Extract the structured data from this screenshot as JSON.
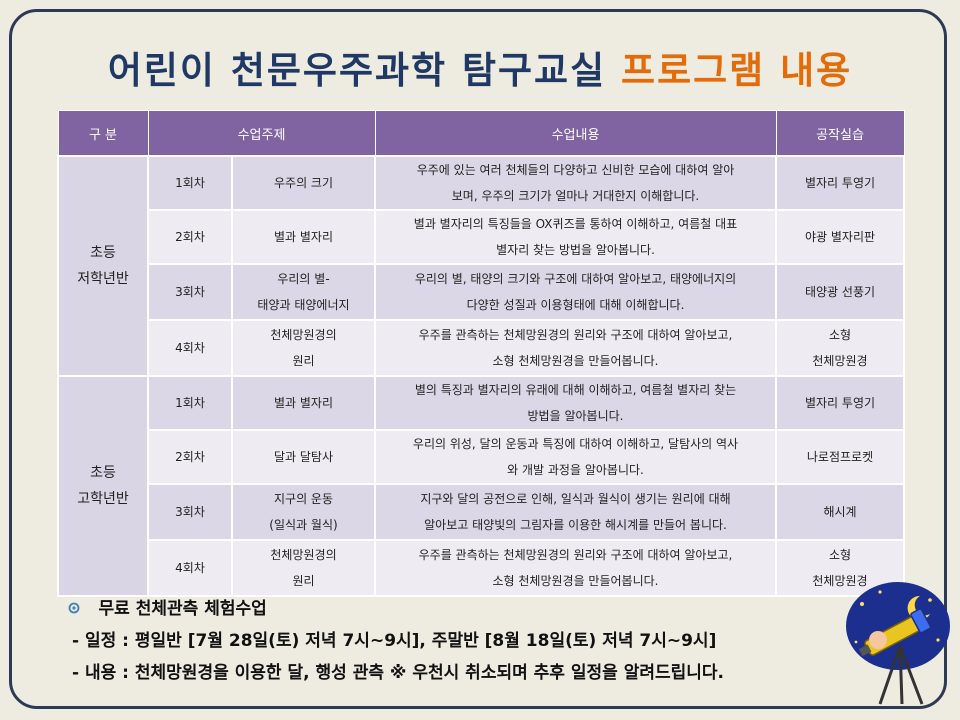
{
  "title": {
    "main": "어린이 천문우주과학 탐구교실",
    "highlight": "프로그램 내용"
  },
  "table": {
    "headers": [
      "구 분",
      "수업주제",
      "수업내용",
      "공작실습"
    ],
    "groups": [
      {
        "name_line1": "초등",
        "name_line2": "저학년반",
        "rows": [
          {
            "session": "1회차",
            "topic1": "우주의 크기",
            "topic2": "",
            "content1": "우주에 있는 여러 천체들의 다양하고 신비한 모습에 대하여 알아",
            "content2": "보며, 우주의 크기가 얼마나 거대한지 이해합니다.",
            "craft1": "별자리 투영기",
            "craft2": ""
          },
          {
            "session": "2회차",
            "topic1": "별과 별자리",
            "topic2": "",
            "content1": "별과 별자리의 특징들을 OX퀴즈를 통하여 이해하고, 여름철 대표",
            "content2": "별자리 찾는 방법을 알아봅니다.",
            "craft1": "야광 별자리판",
            "craft2": ""
          },
          {
            "session": "3회차",
            "topic1": "우리의 별-",
            "topic2": "태양과 태양에너지",
            "content1": "우리의 별, 태양의 크기와 구조에 대하여 알아보고, 태양에너지의",
            "content2": "다양한 성질과 이용형태에 대해 이해합니다.",
            "craft1": "태양광 선풍기",
            "craft2": ""
          },
          {
            "session": "4회차",
            "topic1": "천체망원경의",
            "topic2": "원리",
            "content1": "우주를 관측하는 천체망원경의 원리와 구조에 대하여 알아보고,",
            "content2": "소형 천체망원경을 만들어봅니다.",
            "craft1": "소형",
            "craft2": "천체망원경"
          }
        ]
      },
      {
        "name_line1": "초등",
        "name_line2": "고학년반",
        "rows": [
          {
            "session": "1회차",
            "topic1": "별과 별자리",
            "topic2": "",
            "content1": "별의 특징과 별자리의 유래에 대해 이해하고, 여름철 별자리 찾는",
            "content2": "방법을 알아봅니다.",
            "craft1": "별자리 투영기",
            "craft2": ""
          },
          {
            "session": "2회차",
            "topic1": "달과 달탐사",
            "topic2": "",
            "content1": "우리의 위성, 달의 운동과 특징에 대하여 이해하고, 달탐사의 역사",
            "content2": "와 개발 과정을 알아봅니다.",
            "craft1": "나로점프로켓",
            "craft2": ""
          },
          {
            "session": "3회차",
            "topic1": "지구의 운동",
            "topic2": "(일식과 월식)",
            "content1": "지구와 달의 공전으로 인해, 일식과 월식이 생기는 원리에 대해",
            "content2": "알아보고  태양빛의 그림자를 이용한 해시계를 만들어 봅니다.",
            "craft1": "해시계",
            "craft2": ""
          },
          {
            "session": "4회차",
            "topic1": "천체망원경의",
            "topic2": "원리",
            "content1": "우주를 관측하는 천체망원경의 원리와 구조에 대하여 알아보고,",
            "content2": "소형 천체망원경을 만들어봅니다.",
            "craft1": "소형",
            "craft2": "천체망원경"
          }
        ]
      }
    ]
  },
  "free_class": {
    "heading": "무료 천체관측 체험수업",
    "schedule": "- 일정 : 평일반 [7월 28일(토) 저녁 7시~9시],  주말반 [8월 18일(토) 저녁 7시~9시]",
    "content": "- 내용 : 천체망원경을 이용한 달, 행성 관측   ※ 우천시 취소되며 추후 일정을 알려드립니다."
  },
  "colors": {
    "header": "#8064a2",
    "title": "#1f3864",
    "highlight": "#e36c0a",
    "row_dark": "#dcd7e6",
    "row_light": "#eeecf2"
  },
  "icons": [
    "bullet-icon",
    "telescope-illustration"
  ]
}
